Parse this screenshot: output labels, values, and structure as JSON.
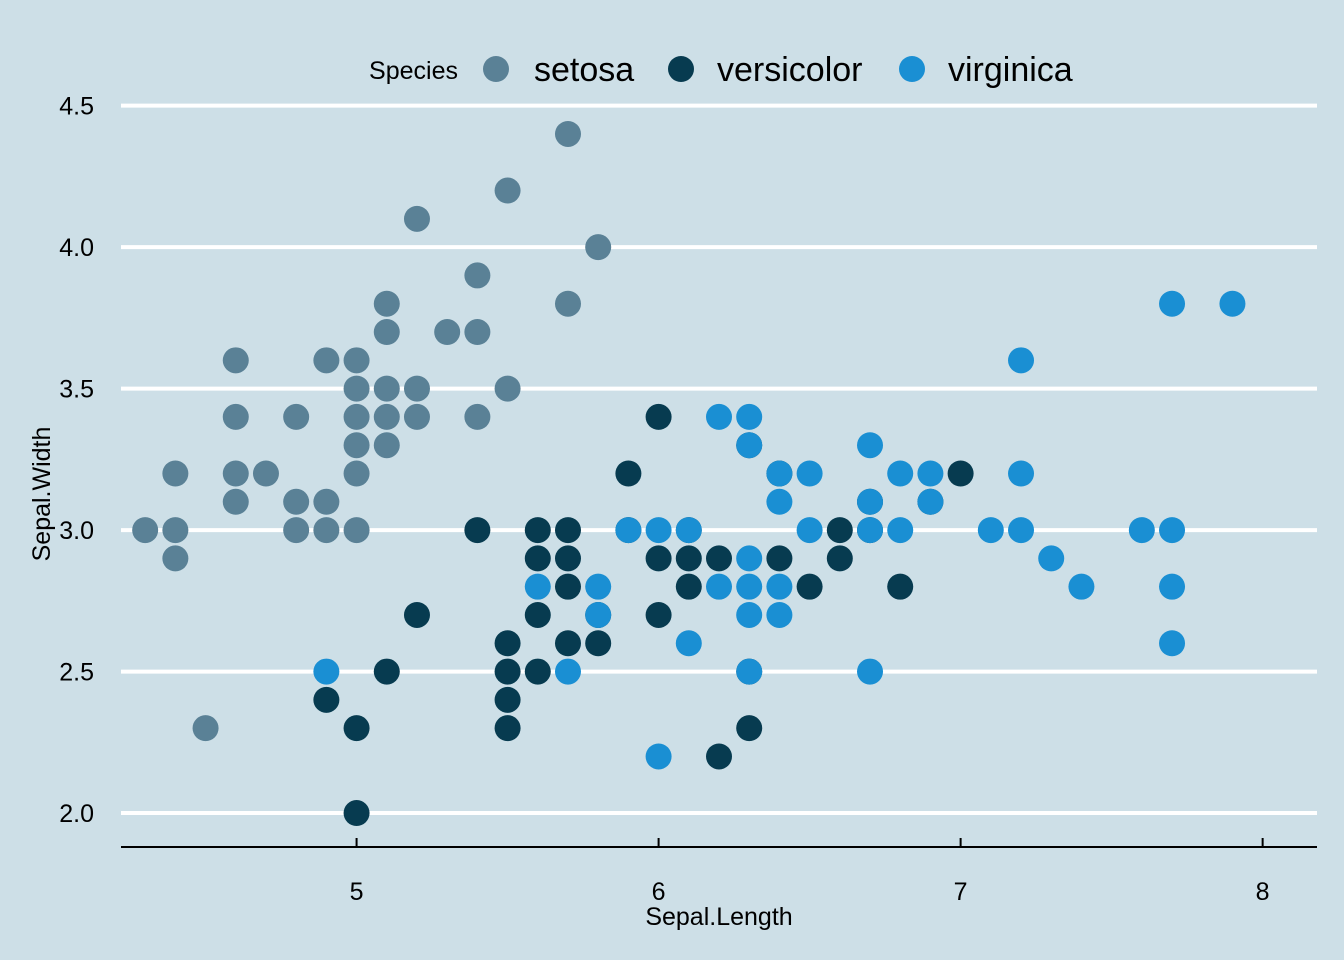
{
  "chart_data": {
    "type": "scatter",
    "title": "",
    "xlabel": "Sepal.Length",
    "ylabel": "Sepal.Width",
    "xlim": [
      4.22,
      8.18
    ],
    "ylim": [
      1.88,
      4.52
    ],
    "xticks": [
      5,
      6,
      7,
      8
    ],
    "xtick_labels": [
      "5",
      "6",
      "7",
      "8"
    ],
    "yticks": [
      2.0,
      2.5,
      3.0,
      3.5,
      4.0,
      4.5
    ],
    "ytick_labels": [
      "2.0",
      "2.5",
      "3.0",
      "3.5",
      "4.0",
      "4.5"
    ],
    "grid": "horizontal",
    "legend": {
      "title": "Species",
      "position": "top"
    },
    "series": [
      {
        "name": "setosa",
        "color": "#5a8196",
        "points": [
          [
            4.3,
            3.0
          ],
          [
            4.4,
            2.9
          ],
          [
            4.4,
            3.0
          ],
          [
            4.4,
            3.2
          ],
          [
            4.5,
            2.3
          ],
          [
            4.6,
            3.1
          ],
          [
            4.6,
            3.2
          ],
          [
            4.6,
            3.4
          ],
          [
            4.6,
            3.6
          ],
          [
            4.7,
            3.2
          ],
          [
            4.8,
            3.0
          ],
          [
            4.8,
            3.1
          ],
          [
            4.8,
            3.4
          ],
          [
            4.9,
            3.0
          ],
          [
            4.9,
            3.1
          ],
          [
            4.9,
            3.6
          ],
          [
            5.0,
            3.0
          ],
          [
            5.0,
            3.2
          ],
          [
            5.0,
            3.3
          ],
          [
            5.0,
            3.4
          ],
          [
            5.0,
            3.5
          ],
          [
            5.0,
            3.6
          ],
          [
            5.1,
            3.3
          ],
          [
            5.1,
            3.4
          ],
          [
            5.1,
            3.5
          ],
          [
            5.1,
            3.7
          ],
          [
            5.1,
            3.8
          ],
          [
            5.2,
            3.4
          ],
          [
            5.2,
            3.5
          ],
          [
            5.2,
            4.1
          ],
          [
            5.3,
            3.7
          ],
          [
            5.4,
            3.4
          ],
          [
            5.4,
            3.7
          ],
          [
            5.4,
            3.9
          ],
          [
            5.5,
            3.5
          ],
          [
            5.5,
            4.2
          ],
          [
            5.7,
            3.8
          ],
          [
            5.7,
            4.4
          ],
          [
            5.8,
            4.0
          ]
        ]
      },
      {
        "name": "versicolor",
        "color": "#073b50",
        "points": [
          [
            4.9,
            2.4
          ],
          [
            5.0,
            2.0
          ],
          [
            5.0,
            2.3
          ],
          [
            5.1,
            2.5
          ],
          [
            5.2,
            2.7
          ],
          [
            5.4,
            3.0
          ],
          [
            5.5,
            2.3
          ],
          [
            5.5,
            2.4
          ],
          [
            5.5,
            2.5
          ],
          [
            5.5,
            2.6
          ],
          [
            5.6,
            2.5
          ],
          [
            5.6,
            2.7
          ],
          [
            5.6,
            2.9
          ],
          [
            5.6,
            3.0
          ],
          [
            5.7,
            2.6
          ],
          [
            5.7,
            2.8
          ],
          [
            5.7,
            2.9
          ],
          [
            5.7,
            3.0
          ],
          [
            5.8,
            2.6
          ],
          [
            5.8,
            2.7
          ],
          [
            5.9,
            3.0
          ],
          [
            5.9,
            3.2
          ],
          [
            6.0,
            2.7
          ],
          [
            6.0,
            2.9
          ],
          [
            6.0,
            3.4
          ],
          [
            6.1,
            2.8
          ],
          [
            6.1,
            2.9
          ],
          [
            6.1,
            3.0
          ],
          [
            6.2,
            2.2
          ],
          [
            6.2,
            2.9
          ],
          [
            6.3,
            2.3
          ],
          [
            6.3,
            2.5
          ],
          [
            6.3,
            3.3
          ],
          [
            6.4,
            2.9
          ],
          [
            6.4,
            3.2
          ],
          [
            6.5,
            2.8
          ],
          [
            6.6,
            2.9
          ],
          [
            6.6,
            3.0
          ],
          [
            6.7,
            3.0
          ],
          [
            6.7,
            3.1
          ],
          [
            6.8,
            2.8
          ],
          [
            6.9,
            3.1
          ],
          [
            7.0,
            3.2
          ]
        ]
      },
      {
        "name": "virginica",
        "color": "#1a8fd3",
        "points": [
          [
            4.9,
            2.5
          ],
          [
            5.6,
            2.8
          ],
          [
            5.7,
            2.5
          ],
          [
            5.8,
            2.7
          ],
          [
            5.8,
            2.8
          ],
          [
            5.9,
            3.0
          ],
          [
            6.0,
            2.2
          ],
          [
            6.0,
            3.0
          ],
          [
            6.1,
            2.6
          ],
          [
            6.1,
            3.0
          ],
          [
            6.2,
            2.8
          ],
          [
            6.2,
            3.4
          ],
          [
            6.3,
            2.5
          ],
          [
            6.3,
            2.7
          ],
          [
            6.3,
            2.8
          ],
          [
            6.3,
            2.9
          ],
          [
            6.3,
            3.3
          ],
          [
            6.3,
            3.4
          ],
          [
            6.4,
            2.7
          ],
          [
            6.4,
            2.8
          ],
          [
            6.4,
            3.1
          ],
          [
            6.4,
            3.2
          ],
          [
            6.5,
            3.0
          ],
          [
            6.5,
            3.2
          ],
          [
            6.7,
            2.5
          ],
          [
            6.7,
            3.0
          ],
          [
            6.7,
            3.1
          ],
          [
            6.7,
            3.3
          ],
          [
            6.8,
            3.0
          ],
          [
            6.8,
            3.2
          ],
          [
            6.9,
            3.1
          ],
          [
            6.9,
            3.2
          ],
          [
            7.1,
            3.0
          ],
          [
            7.2,
            3.0
          ],
          [
            7.2,
            3.2
          ],
          [
            7.2,
            3.6
          ],
          [
            7.3,
            2.9
          ],
          [
            7.4,
            2.8
          ],
          [
            7.6,
            3.0
          ],
          [
            7.7,
            2.6
          ],
          [
            7.7,
            2.8
          ],
          [
            7.7,
            3.0
          ],
          [
            7.7,
            3.8
          ],
          [
            7.9,
            3.8
          ]
        ]
      }
    ]
  }
}
